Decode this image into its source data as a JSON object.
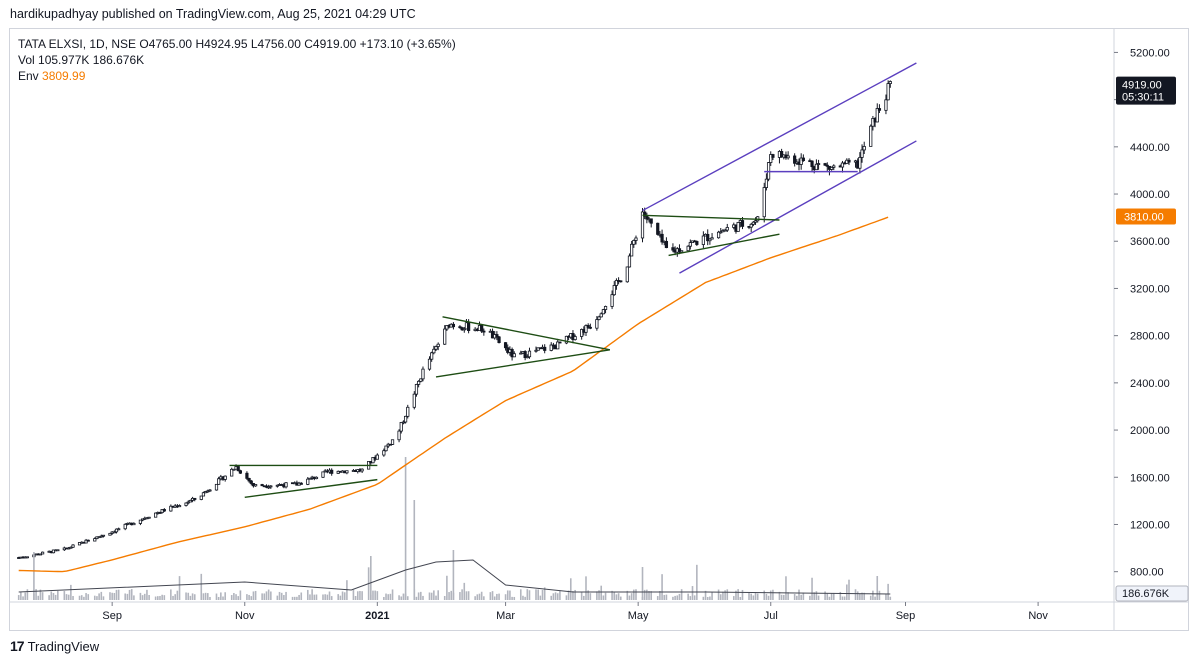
{
  "header": {
    "published_line": "hardikupadhyay published on TradingView.com, Aug 25, 2021 04:29 UTC"
  },
  "legend": {
    "symbol_line": "TATA ELXSI, 1D, NSE",
    "open": "O4765.00",
    "high": "H4924.95",
    "low": "L4756.00",
    "close": "C4919.00",
    "change": "+173.10 (+3.65%)",
    "vol_label": "Vol",
    "vol_value": "105.977K",
    "vol_ma": "186.676K",
    "env_label": "Env",
    "env_value": "3809.99"
  },
  "brand": {
    "name": "TradingView",
    "mark": "17"
  },
  "colors": {
    "up": "#131722",
    "down": "#131722",
    "envelope": "#f57c00",
    "channel": "#5b3fbf",
    "pattern": "#1e4d14",
    "volume": "#b2b5be"
  },
  "chart_data": {
    "type": "candlestick",
    "symbol": "TATA ELXSI",
    "interval": "1D",
    "exchange": "NSE",
    "x_tick_labels": [
      "Sep",
      "Nov",
      "2021",
      "Mar",
      "May",
      "Jul",
      "Sep",
      "Nov"
    ],
    "y_tick_labels": [
      "5200.00",
      "4800.00",
      "4400.00",
      "4000.00",
      "3600.00",
      "3200.00",
      "2800.00",
      "2400.00",
      "2000.00",
      "1600.00",
      "1200.00",
      "800.00"
    ],
    "ylim": [
      560,
      5390
    ],
    "last_price_label": "4919.00",
    "countdown_label": "05:30:11",
    "envelope_label": "3810.00",
    "volume_label": "186.676K",
    "price_anchors": [
      {
        "date": "2020-07-20",
        "close": 920
      },
      {
        "date": "2020-08-10",
        "close": 990
      },
      {
        "date": "2020-09-01",
        "close": 1140
      },
      {
        "date": "2020-09-20",
        "close": 1290
      },
      {
        "date": "2020-10-10",
        "close": 1420
      },
      {
        "date": "2020-10-28",
        "close": 1690
      },
      {
        "date": "2020-11-05",
        "close": 1530
      },
      {
        "date": "2020-11-25",
        "close": 1540
      },
      {
        "date": "2020-12-10",
        "close": 1650
      },
      {
        "date": "2020-12-25",
        "close": 1660
      },
      {
        "date": "2021-01-10",
        "close": 1950
      },
      {
        "date": "2021-01-22",
        "close": 2500
      },
      {
        "date": "2021-02-03",
        "close": 2900
      },
      {
        "date": "2021-02-20",
        "close": 2850
      },
      {
        "date": "2021-03-05",
        "close": 2620
      },
      {
        "date": "2021-03-25",
        "close": 2720
      },
      {
        "date": "2021-04-10",
        "close": 2900
      },
      {
        "date": "2021-04-25",
        "close": 3350
      },
      {
        "date": "2021-05-03",
        "close": 3850
      },
      {
        "date": "2021-05-15",
        "close": 3500
      },
      {
        "date": "2021-06-10",
        "close": 3700
      },
      {
        "date": "2021-06-25",
        "close": 3780
      },
      {
        "date": "2021-07-01",
        "close": 4350
      },
      {
        "date": "2021-07-12",
        "close": 4300
      },
      {
        "date": "2021-07-28",
        "close": 4220
      },
      {
        "date": "2021-08-10",
        "close": 4250
      },
      {
        "date": "2021-08-18",
        "close": 4650
      },
      {
        "date": "2021-08-25",
        "close": 4919
      }
    ],
    "envelope_anchors": [
      {
        "date": "2020-07-20",
        "value": 810
      },
      {
        "date": "2020-08-10",
        "value": 800
      },
      {
        "date": "2020-09-01",
        "value": 900
      },
      {
        "date": "2020-10-01",
        "value": 1050
      },
      {
        "date": "2020-11-01",
        "value": 1180
      },
      {
        "date": "2020-12-01",
        "value": 1330
      },
      {
        "date": "2021-01-01",
        "value": 1540
      },
      {
        "date": "2021-02-01",
        "value": 1930
      },
      {
        "date": "2021-03-01",
        "value": 2250
      },
      {
        "date": "2021-04-01",
        "value": 2500
      },
      {
        "date": "2021-05-01",
        "value": 2900
      },
      {
        "date": "2021-06-01",
        "value": 3250
      },
      {
        "date": "2021-07-01",
        "value": 3460
      },
      {
        "date": "2021-08-01",
        "value": 3650
      },
      {
        "date": "2021-08-25",
        "value": 3810
      }
    ],
    "drawings": [
      {
        "kind": "channel",
        "points": [
          [
            "2021-05-03",
            3860
          ],
          [
            "2021-09-06",
            5110
          ]
        ]
      },
      {
        "kind": "channel",
        "points": [
          [
            "2021-05-20",
            3330
          ],
          [
            "2021-09-06",
            4450
          ]
        ]
      },
      {
        "kind": "box_line",
        "points": [
          [
            "2021-06-28",
            4190
          ],
          [
            "2021-08-10",
            4190
          ]
        ]
      },
      {
        "kind": "pattern",
        "points": [
          [
            "2021-05-03",
            3820
          ],
          [
            "2021-07-05",
            3780
          ]
        ]
      },
      {
        "kind": "pattern",
        "points": [
          [
            "2021-05-15",
            3480
          ],
          [
            "2021-07-05",
            3660
          ]
        ]
      },
      {
        "kind": "pattern",
        "points": [
          [
            "2021-01-31",
            2960
          ],
          [
            "2021-04-18",
            2680
          ]
        ]
      },
      {
        "kind": "pattern",
        "points": [
          [
            "2021-01-28",
            2450
          ],
          [
            "2021-04-18",
            2680
          ]
        ]
      },
      {
        "kind": "pattern",
        "points": [
          [
            "2020-10-25",
            1700
          ],
          [
            "2021-01-01",
            1700
          ]
        ]
      },
      {
        "kind": "pattern",
        "points": [
          [
            "2020-11-01",
            1430
          ],
          [
            "2021-01-01",
            1580
          ]
        ]
      }
    ]
  }
}
